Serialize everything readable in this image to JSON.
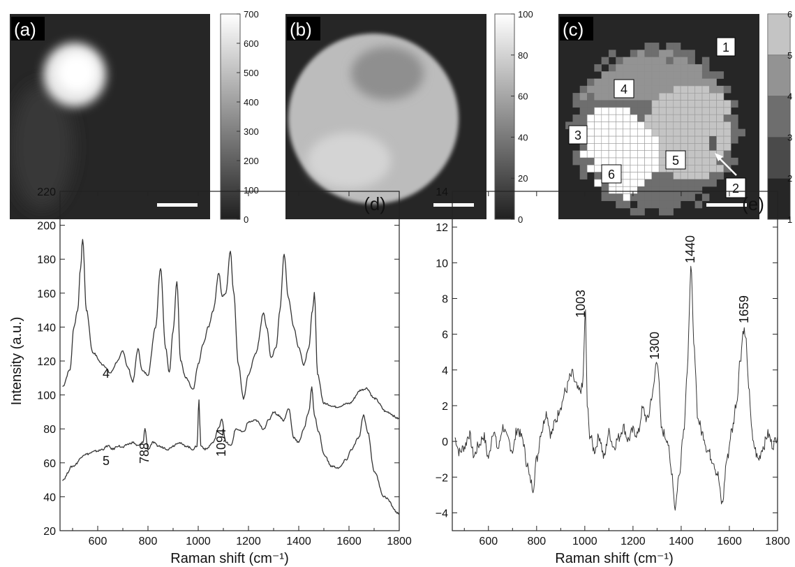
{
  "panels": {
    "a": {
      "label": "(a)",
      "colorbar": {
        "min": 0,
        "max": 700,
        "ticks": [
          0,
          100,
          200,
          300,
          400,
          500,
          600,
          700
        ]
      }
    },
    "b": {
      "label": "(b)",
      "colorbar": {
        "min": 0,
        "max": 100,
        "ticks": [
          0,
          20,
          40,
          60,
          80,
          100
        ]
      }
    },
    "c": {
      "label": "(c)",
      "colorbar": {
        "min": 1,
        "max": 6,
        "ticks": [
          1,
          2,
          3,
          4,
          5,
          6
        ]
      },
      "cluster_labels": [
        "1",
        "2",
        "3",
        "4",
        "5",
        "6"
      ]
    },
    "d": {
      "label": "(d)"
    },
    "e": {
      "label": "(e)"
    }
  },
  "chart_data": [
    {
      "panel": "(d)",
      "type": "line",
      "title": "",
      "xlabel": "Raman shift (cm⁻¹)",
      "ylabel": "Intensity (a.u.)",
      "xlim": [
        450,
        1800
      ],
      "ylim": [
        20,
        220
      ],
      "xticks": [
        600,
        800,
        1000,
        1200,
        1400,
        1600,
        1800
      ],
      "yticks": [
        20,
        40,
        60,
        80,
        100,
        120,
        140,
        160,
        180,
        200,
        220
      ],
      "series": [
        {
          "label": "4",
          "x": [
            460,
            490,
            505,
            520,
            532,
            540,
            555,
            580,
            620,
            650,
            680,
            700,
            720,
            740,
            760,
            778,
            800,
            830,
            850,
            870,
            885,
            900,
            915,
            930,
            950,
            980,
            1000,
            1020,
            1040,
            1060,
            1082,
            1095,
            1110,
            1128,
            1140,
            1160,
            1180,
            1200,
            1230,
            1260,
            1272,
            1290,
            1310,
            1325,
            1342,
            1358,
            1380,
            1400,
            1420,
            1440,
            1455,
            1462,
            1475,
            1500,
            1550,
            1600,
            1650,
            1670,
            1700,
            1750,
            1800
          ],
          "y": [
            105,
            115,
            140,
            150,
            175,
            192,
            150,
            125,
            118,
            113,
            120,
            126,
            116,
            108,
            127,
            114,
            112,
            140,
            175,
            128,
            113,
            138,
            167,
            120,
            110,
            103,
            118,
            130,
            140,
            150,
            172,
            158,
            160,
            185,
            162,
            118,
            98,
            112,
            125,
            148,
            140,
            122,
            128,
            150,
            183,
            158,
            140,
            128,
            118,
            128,
            150,
            160,
            112,
            95,
            93,
            95,
            103,
            104,
            98,
            90,
            86
          ]
        },
        {
          "label": "5",
          "x": [
            460,
            500,
            550,
            600,
            620,
            640,
            660,
            680,
            700,
            720,
            740,
            760,
            780,
            788,
            800,
            820,
            840,
            860,
            880,
            900,
            920,
            950,
            980,
            995,
            1003,
            1010,
            1030,
            1060,
            1080,
            1094,
            1110,
            1130,
            1150,
            1180,
            1200,
            1230,
            1260,
            1280,
            1300,
            1320,
            1340,
            1360,
            1380,
            1400,
            1420,
            1440,
            1452,
            1462,
            1480,
            1500,
            1530,
            1560,
            1590,
            1610,
            1640,
            1658,
            1675,
            1700,
            1740,
            1800
          ],
          "y": [
            50,
            58,
            65,
            67,
            68,
            70,
            68,
            70,
            69,
            71,
            72,
            70,
            72,
            80,
            68,
            72,
            70,
            69,
            68,
            70,
            72,
            70,
            68,
            70,
            97,
            70,
            68,
            72,
            80,
            86,
            72,
            70,
            80,
            78,
            84,
            85,
            80,
            85,
            90,
            88,
            85,
            92,
            75,
            72,
            80,
            90,
            105,
            88,
            78,
            65,
            58,
            57,
            62,
            68,
            75,
            88,
            78,
            55,
            40,
            30
          ]
        }
      ],
      "annotations": [
        "4",
        "5",
        "788",
        "1094"
      ]
    },
    {
      "panel": "(e)",
      "type": "line",
      "title": "",
      "xlabel": "Raman shift (cm⁻¹)",
      "ylabel": "",
      "xlim": [
        450,
        1800
      ],
      "ylim": [
        -5,
        14
      ],
      "xticks": [
        600,
        800,
        1000,
        1200,
        1400,
        1600,
        1800
      ],
      "yticks": [
        -4,
        -2,
        0,
        2,
        4,
        6,
        8,
        10,
        12,
        14
      ],
      "series": [
        {
          "x": [
            460,
            480,
            500,
            520,
            540,
            560,
            580,
            600,
            620,
            640,
            660,
            680,
            700,
            720,
            740,
            760,
            772,
            785,
            800,
            820,
            840,
            860,
            880,
            900,
            920,
            940,
            950,
            960,
            975,
            990,
            1003,
            1010,
            1020,
            1040,
            1060,
            1080,
            1100,
            1120,
            1140,
            1160,
            1180,
            1200,
            1220,
            1240,
            1260,
            1280,
            1300,
            1320,
            1340,
            1360,
            1375,
            1390,
            1410,
            1425,
            1440,
            1455,
            1470,
            1490,
            1510,
            1530,
            1550,
            1570,
            1590,
            1610,
            1630,
            1645,
            1659,
            1670,
            1680,
            1700,
            1720,
            1740,
            1760,
            1780,
            1800
          ],
          "y": [
            0.2,
            -0.6,
            -0.3,
            0.4,
            -0.8,
            -0.2,
            0.3,
            -0.9,
            0.6,
            -0.4,
            0.8,
            0.1,
            -0.5,
            0.7,
            0.2,
            -1.2,
            -2.1,
            -2.6,
            -1.0,
            0.6,
            1.6,
            0.4,
            1.2,
            2.0,
            2.8,
            3.6,
            3.8,
            3.2,
            2.8,
            3.0,
            7.2,
            2.0,
            0.4,
            -0.5,
            0.3,
            -0.9,
            0.5,
            -0.3,
            0.2,
            0.8,
            0.1,
            0.6,
            0.4,
            1.8,
            1.2,
            2.6,
            4.6,
            0.6,
            0.2,
            -1.6,
            -3.7,
            -2.0,
            0.6,
            3.8,
            9.6,
            5.0,
            1.2,
            0.4,
            -0.5,
            -1.0,
            -1.8,
            -3.5,
            -1.0,
            0.6,
            2.2,
            4.6,
            6.3,
            5.6,
            2.8,
            -0.2,
            -1.0,
            -0.3,
            0.4,
            -0.2,
            0.3
          ]
        }
      ],
      "annotations": [
        "1003",
        "1300",
        "1440",
        "1659"
      ]
    }
  ],
  "colors": {
    "background": "#ffffff",
    "line": "#333333",
    "image_bg": "#262626"
  }
}
